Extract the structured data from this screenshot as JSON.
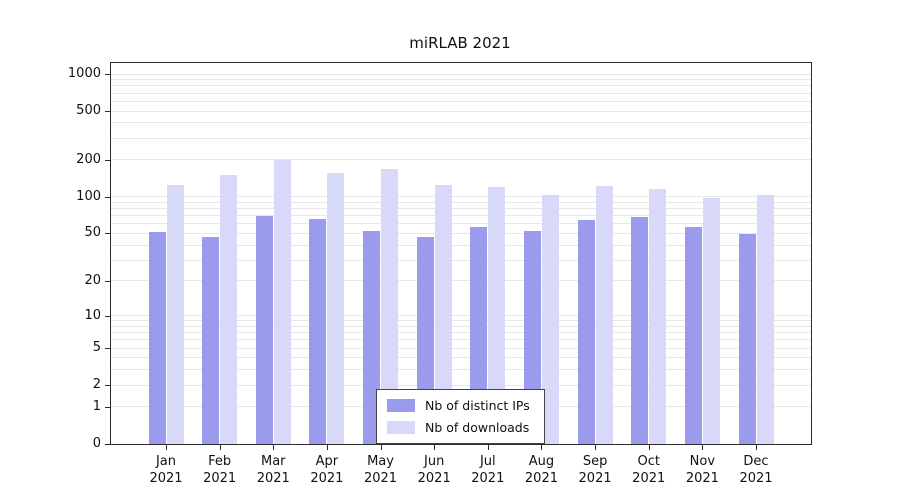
{
  "chart_data": {
    "type": "bar",
    "title": "miRLAB 2021",
    "categories": [
      "Jan",
      "Feb",
      "Mar",
      "Apr",
      "May",
      "Jun",
      "Jul",
      "Aug",
      "Sep",
      "Oct",
      "Nov",
      "Dec"
    ],
    "year": "2021",
    "series": [
      {
        "name": "Nb of distinct IPs",
        "color": "#9b9bee",
        "values": [
          51,
          47,
          70,
          66,
          52,
          47,
          56,
          52,
          64,
          68,
          56,
          49
        ]
      },
      {
        "name": "Nb of downloads",
        "color": "#d8d8f8",
        "values": [
          124,
          150,
          200,
          158,
          170,
          126,
          120,
          104,
          122,
          117,
          98,
          104
        ]
      }
    ],
    "y_ticks": [
      0,
      1,
      2,
      5,
      10,
      20,
      50,
      100,
      200,
      500,
      1000
    ],
    "y_scale": "log1p",
    "ylim": [
      0,
      1000
    ],
    "grid": "horizontal-minor-log",
    "legend_position": "bottom-center-inside"
  }
}
